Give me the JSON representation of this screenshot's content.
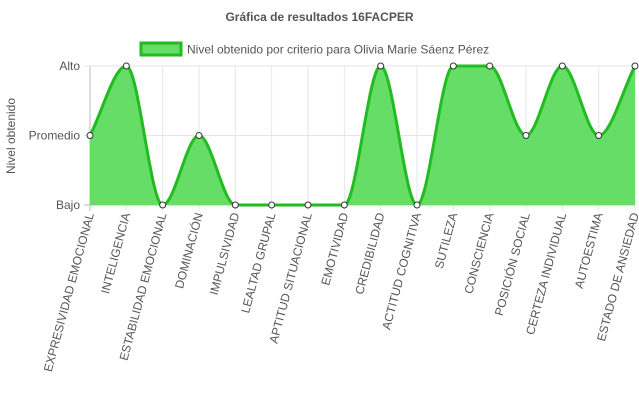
{
  "chart_data": {
    "type": "area",
    "title": "Gráfica de resultados 16FACPER",
    "ylabel": "Nivel obtenido",
    "xlabel": "",
    "y_levels": [
      "Bajo",
      "Promedio",
      "Alto"
    ],
    "ylim": [
      0,
      2
    ],
    "grid": true,
    "legend_position": "top",
    "categories": [
      "EXPRESIVIDAD EMOCIONAL",
      "INTELIGENCIA",
      "ESTABILIDAD EMOCIONAL",
      "DOMINACIÓN",
      "IMPULSIVIDAD",
      "LEALTAD GRUPAL",
      "APTITUD SITUACIONAL",
      "EMOTIVIDAD",
      "CREDIBILIDAD",
      "ACTITUD COGNITIVA",
      "SUTILEZA",
      "CONSCIENCIA",
      "POSICIÓN SOCIAL",
      "CERTEZA INDIVIDUAL",
      "AUTOESTIMA",
      "ESTADO DE ANSIEDAD"
    ],
    "series": [
      {
        "name": "Nivel obtenido por criterio para Olivia Marie Sáenz Pérez",
        "values": [
          1,
          2,
          0,
          1,
          0,
          0,
          0,
          0,
          2,
          0,
          2,
          2,
          1,
          2,
          1,
          2
        ],
        "fill_color": "#66dd66",
        "line_color": "#22bb22"
      }
    ]
  }
}
